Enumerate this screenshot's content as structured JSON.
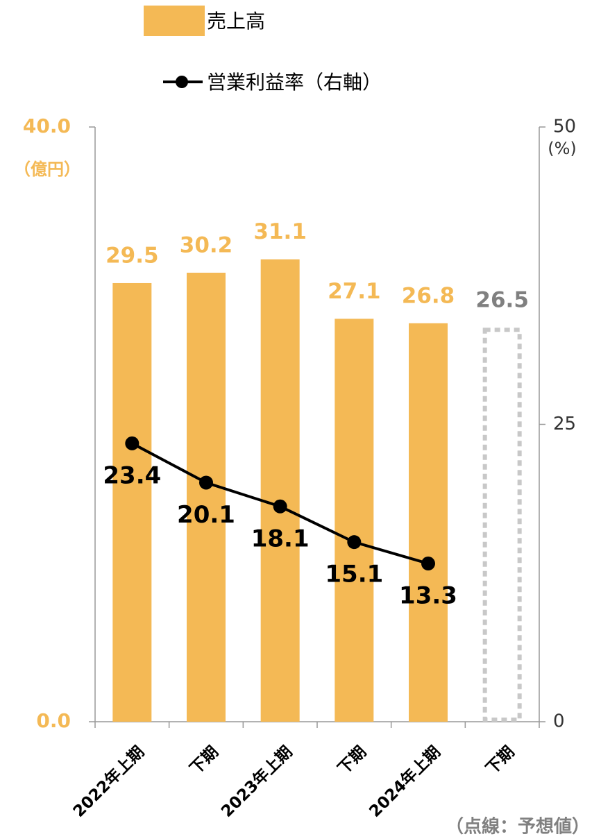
{
  "chart_data": {
    "type": "bar",
    "categories": [
      "2022年上期",
      "下期",
      "2023年上期",
      "下期",
      "2024年上期",
      "下期"
    ],
    "series": [
      {
        "name": "売上高",
        "type": "bar",
        "color": "#f4b955",
        "values": [
          29.5,
          30.2,
          31.1,
          27.1,
          26.8,
          26.5
        ],
        "forecast": [
          false,
          false,
          false,
          false,
          false,
          true
        ],
        "forecast_color": "#c8c8c8"
      },
      {
        "name": "営業利益率（右軸）",
        "type": "line",
        "axis": "y2",
        "color": "#000000",
        "values": [
          23.4,
          20.1,
          18.1,
          15.1,
          13.3,
          null
        ]
      }
    ],
    "ylim": [
      0,
      40
    ],
    "yticks": [
      {
        "value": 0,
        "label": "0.0"
      },
      {
        "value": 40,
        "label": "40.0"
      }
    ],
    "ylabel": "（億円）",
    "y2lim": [
      0,
      50
    ],
    "y2ticks": [
      0,
      25,
      50
    ],
    "y2label": "(%)",
    "annotation": "（点線：予想値）"
  }
}
